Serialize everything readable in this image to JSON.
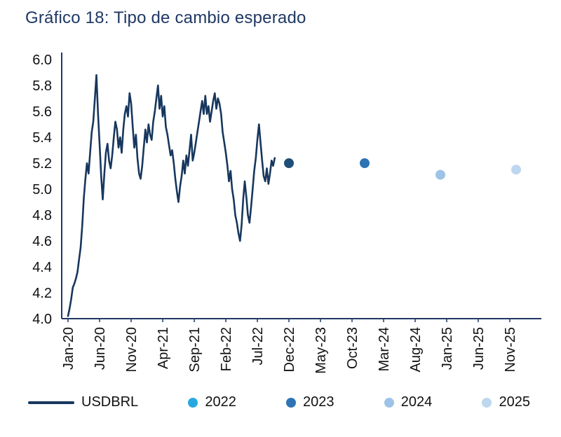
{
  "title": "Gráfico 18: Tipo de cambio esperado",
  "chart_data": {
    "type": "line",
    "title": "Gráfico 18: Tipo de cambio esperado",
    "xlabel": "",
    "ylabel": "",
    "ylim": [
      4.0,
      6.0
    ],
    "ytick_step": 0.2,
    "grid": false,
    "legend_position": "bottom",
    "axis_color": "#1F3864",
    "x_ticks": [
      {
        "label": "Jan-20",
        "m": 0
      },
      {
        "label": "Jun-20",
        "m": 5
      },
      {
        "label": "Nov-20",
        "m": 10
      },
      {
        "label": "Apr-21",
        "m": 15
      },
      {
        "label": "Sep-21",
        "m": 20
      },
      {
        "label": "Feb-22",
        "m": 25
      },
      {
        "label": "Jul-22",
        "m": 30
      },
      {
        "label": "Dec-22",
        "m": 35
      },
      {
        "label": "May-23",
        "m": 40
      },
      {
        "label": "Oct-23",
        "m": 45
      },
      {
        "label": "Mar-24",
        "m": 50
      },
      {
        "label": "Aug-24",
        "m": 55
      },
      {
        "label": "Jan-25",
        "m": 60
      },
      {
        "label": "Jun-25",
        "m": 65
      },
      {
        "label": "Nov-25",
        "m": 70
      }
    ],
    "series": [
      {
        "name": "USDBRL",
        "color": "#17375E",
        "x_start_m": 0,
        "x_step_m": 0.25,
        "values": [
          4.02,
          4.08,
          4.15,
          4.24,
          4.27,
          4.31,
          4.36,
          4.46,
          4.55,
          4.72,
          4.93,
          5.08,
          5.2,
          5.12,
          5.28,
          5.44,
          5.52,
          5.7,
          5.88,
          5.58,
          5.35,
          5.1,
          4.92,
          5.12,
          5.28,
          5.35,
          5.22,
          5.16,
          5.26,
          5.4,
          5.52,
          5.46,
          5.32,
          5.4,
          5.28,
          5.46,
          5.58,
          5.64,
          5.56,
          5.74,
          5.66,
          5.48,
          5.32,
          5.42,
          5.24,
          5.12,
          5.08,
          5.18,
          5.32,
          5.46,
          5.36,
          5.5,
          5.42,
          5.38,
          5.52,
          5.6,
          5.7,
          5.8,
          5.62,
          5.72,
          5.56,
          5.64,
          5.48,
          5.42,
          5.34,
          5.26,
          5.3,
          5.2,
          5.08,
          4.98,
          4.9,
          5.02,
          5.1,
          5.22,
          5.12,
          5.26,
          5.18,
          5.3,
          5.42,
          5.22,
          5.28,
          5.36,
          5.44,
          5.52,
          5.6,
          5.68,
          5.58,
          5.72,
          5.58,
          5.64,
          5.52,
          5.6,
          5.68,
          5.74,
          5.62,
          5.7,
          5.66,
          5.58,
          5.44,
          5.36,
          5.28,
          5.18,
          5.06,
          5.14,
          5.0,
          4.92,
          4.8,
          4.74,
          4.66,
          4.6,
          4.72,
          4.92,
          5.06,
          4.94,
          4.8,
          4.74,
          4.86,
          5.0,
          5.14,
          5.24,
          5.38,
          5.5,
          5.36,
          5.22,
          5.1,
          5.06,
          5.16,
          5.04,
          5.12,
          5.22,
          5.18,
          5.24
        ]
      }
    ],
    "forecast_dots": [
      {
        "label": "2022",
        "m": 35,
        "value": 5.2,
        "color": "#1F4E79"
      },
      {
        "label": "2023",
        "m": 47,
        "value": 5.2,
        "color": "#2E74B5"
      },
      {
        "label": "2024",
        "m": 59,
        "value": 5.11,
        "color": "#9DC3E6"
      },
      {
        "label": "2025",
        "m": 71,
        "value": 5.15,
        "color": "#BDD7EE"
      }
    ],
    "legend": [
      {
        "label": "USDBRL",
        "swatch": "line",
        "color": "#17375E"
      },
      {
        "label": "2022",
        "swatch": "dot",
        "color": "#29A8E0"
      },
      {
        "label": "2023",
        "swatch": "dot",
        "color": "#2E74B5"
      },
      {
        "label": "2024",
        "swatch": "dot",
        "color": "#9DC3E6"
      },
      {
        "label": "2025",
        "swatch": "dot",
        "color": "#BDD7EE"
      }
    ]
  }
}
